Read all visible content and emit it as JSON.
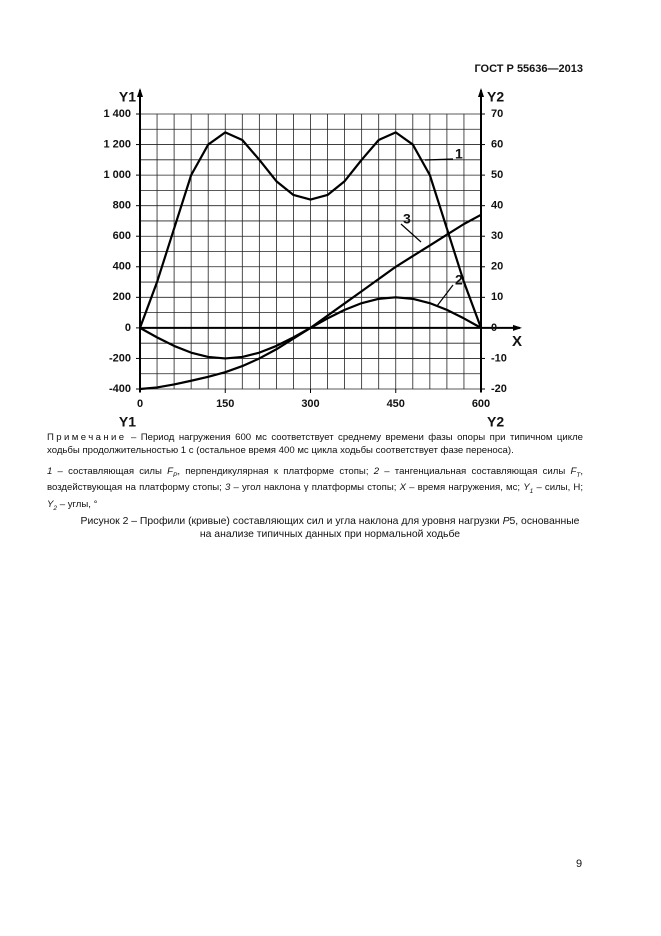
{
  "header": {
    "code": "ГОСТ Р 55636—2013"
  },
  "chart_data": {
    "type": "line",
    "x": [
      0,
      30,
      60,
      90,
      120,
      150,
      180,
      210,
      240,
      270,
      300,
      330,
      360,
      390,
      420,
      450,
      480,
      510,
      540,
      570,
      600
    ],
    "series": [
      {
        "name": "1",
        "color": "#000000",
        "values": [
          0,
          300,
          650,
          1000,
          1200,
          1280,
          1230,
          1100,
          960,
          870,
          840,
          870,
          960,
          1100,
          1230,
          1280,
          1200,
          1000,
          650,
          300,
          0
        ]
      },
      {
        "name": "2",
        "color": "#000000",
        "values": [
          0,
          -62,
          -118,
          -162,
          -190,
          -200,
          -190,
          -162,
          -118,
          -62,
          0,
          62,
          118,
          162,
          190,
          200,
          190,
          162,
          118,
          62,
          0
        ]
      },
      {
        "name": "3",
        "color": "#000000",
        "axis": "y2",
        "values": [
          -20,
          -19.5,
          -18.5,
          -17.3,
          -16,
          -14.5,
          -12.5,
          -10,
          -7,
          -3.5,
          0,
          4,
          8,
          12,
          16,
          20,
          23.5,
          27,
          30.5,
          34,
          37
        ]
      }
    ],
    "xlim": [
      0,
      600
    ],
    "xticks": [
      0,
      150,
      300,
      450,
      600
    ],
    "ylim": [
      -400,
      1400
    ],
    "yticks": [
      -400,
      -200,
      0,
      200,
      400,
      600,
      800,
      {
        "value": 1000,
        "label": "1 000"
      },
      {
        "value": 1200,
        "label": "1 200"
      },
      {
        "value": 1400,
        "label": "1 400"
      }
    ],
    "y2lim": [
      -20,
      70
    ],
    "y2ticks": [
      -20,
      -10,
      0,
      10,
      20,
      30,
      40,
      50,
      60,
      70
    ],
    "xgrid": [
      0,
      30,
      60,
      90,
      120,
      150,
      180,
      210,
      240,
      270,
      300,
      330,
      360,
      390,
      420,
      450,
      480,
      510,
      540,
      570,
      600
    ],
    "ygrid": [
      -400,
      -300,
      -200,
      -100,
      0,
      100,
      200,
      300,
      400,
      500,
      600,
      700,
      800,
      900,
      1000,
      1100,
      1200,
      1300,
      1400
    ],
    "x_label": "X",
    "y_label": "Y1",
    "y2_label": "Y2"
  },
  "note": {
    "label": "Примечание",
    "text": "– Период нагружения 600 мс соответствует среднему времени фазы опоры при типичном цикле ходьбы продолжительностью 1 с (остальное время  400 мс  цикла ходьбы соответствует фазе переноса)."
  },
  "legend": {
    "item1": {
      "num": "1",
      "text_a": " – составляющая силы ",
      "sym": "F",
      "sub": "P",
      "text_b": ", перпендикулярная к платформе стопы; "
    },
    "item2": {
      "num": "2",
      "text_a": " – тангенциальная составляющая силы ",
      "sym": "F",
      "sub": "T",
      "text_b": ", воздействующая на платформу стопы; "
    },
    "item3": {
      "num": "3",
      "text": " – угол наклона γ платформы стопы; "
    },
    "x": {
      "sym": "X",
      "text": " – время нагружения, мс; "
    },
    "y1": {
      "sym": "Y",
      "sub": "1",
      "text": " – силы, Н; "
    },
    "y2": {
      "sym": "Y",
      "sub": "2",
      "text": " – углы, °"
    }
  },
  "caption": {
    "text_a": "Рисунок 2 – Профили (кривые) составляющих сил и угла наклона для уровня нагрузки ",
    "sym": "P",
    "text_b": "5, основанные на анализе типичных данных при нормальной ходьбе"
  },
  "page_number": "9"
}
